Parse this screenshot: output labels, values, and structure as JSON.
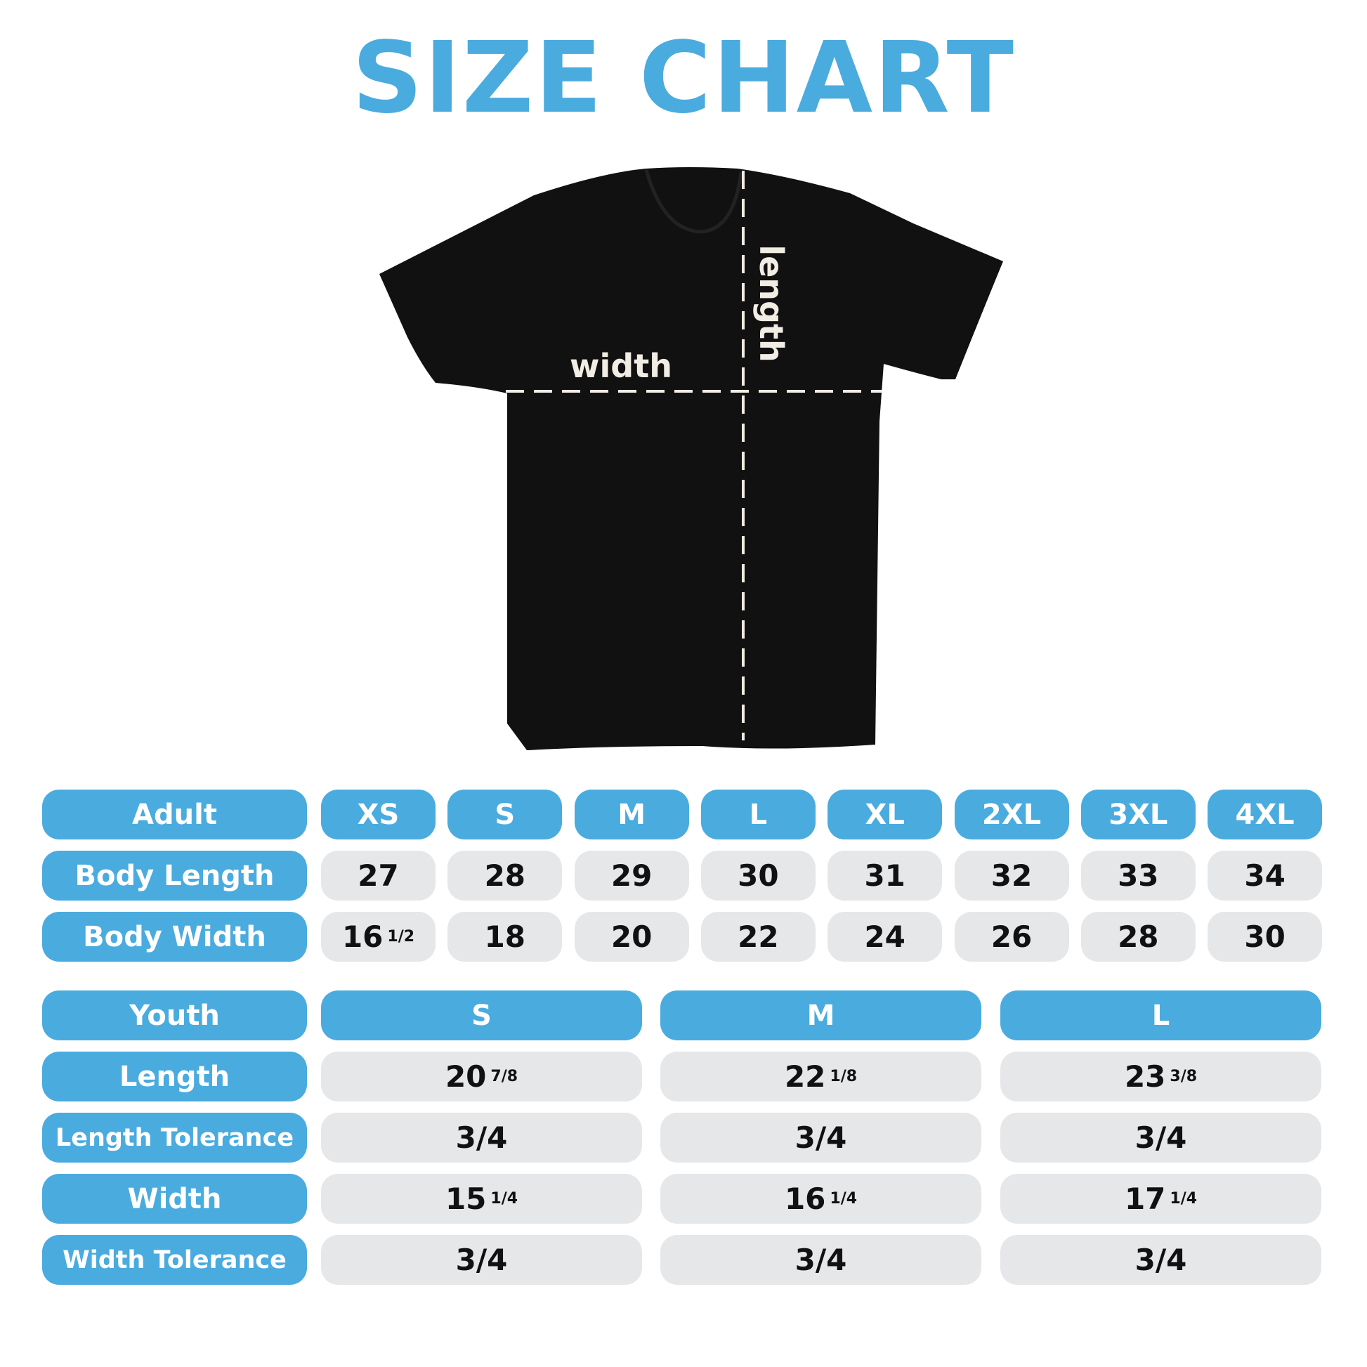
{
  "title": "SIZE CHART",
  "colors": {
    "accent": "#4aabdf",
    "cell": "#e6e7e9",
    "shirt": "#111111",
    "guide": "#f2ede4"
  },
  "diagram": {
    "width_label": "width",
    "length_label": "length"
  },
  "adult": {
    "header": "Adult",
    "sizes": [
      "XS",
      "S",
      "M",
      "L",
      "XL",
      "2XL",
      "3XL",
      "4XL"
    ],
    "rows": [
      {
        "label": "Body Length",
        "values": [
          {
            "whole": "27"
          },
          {
            "whole": "28"
          },
          {
            "whole": "29"
          },
          {
            "whole": "30"
          },
          {
            "whole": "31"
          },
          {
            "whole": "32"
          },
          {
            "whole": "33"
          },
          {
            "whole": "34"
          }
        ]
      },
      {
        "label": "Body Width",
        "values": [
          {
            "whole": "16",
            "frac": "1/2"
          },
          {
            "whole": "18"
          },
          {
            "whole": "20"
          },
          {
            "whole": "22"
          },
          {
            "whole": "24"
          },
          {
            "whole": "26"
          },
          {
            "whole": "28"
          },
          {
            "whole": "30"
          }
        ]
      }
    ]
  },
  "youth": {
    "header": "Youth",
    "sizes": [
      "S",
      "M",
      "L"
    ],
    "rows": [
      {
        "label": "Length",
        "values": [
          {
            "whole": "20",
            "frac": "7/8"
          },
          {
            "whole": "22",
            "frac": "1/8"
          },
          {
            "whole": "23",
            "frac": "3/8"
          }
        ]
      },
      {
        "label": "Length Tolerance",
        "values": [
          {
            "whole": "3/4"
          },
          {
            "whole": "3/4"
          },
          {
            "whole": "3/4"
          }
        ]
      },
      {
        "label": "Width",
        "values": [
          {
            "whole": "15",
            "frac": "1/4"
          },
          {
            "whole": "16",
            "frac": "1/4"
          },
          {
            "whole": "17",
            "frac": "1/4"
          }
        ]
      },
      {
        "label": "Width Tolerance",
        "values": [
          {
            "whole": "3/4"
          },
          {
            "whole": "3/4"
          },
          {
            "whole": "3/4"
          }
        ]
      }
    ]
  }
}
